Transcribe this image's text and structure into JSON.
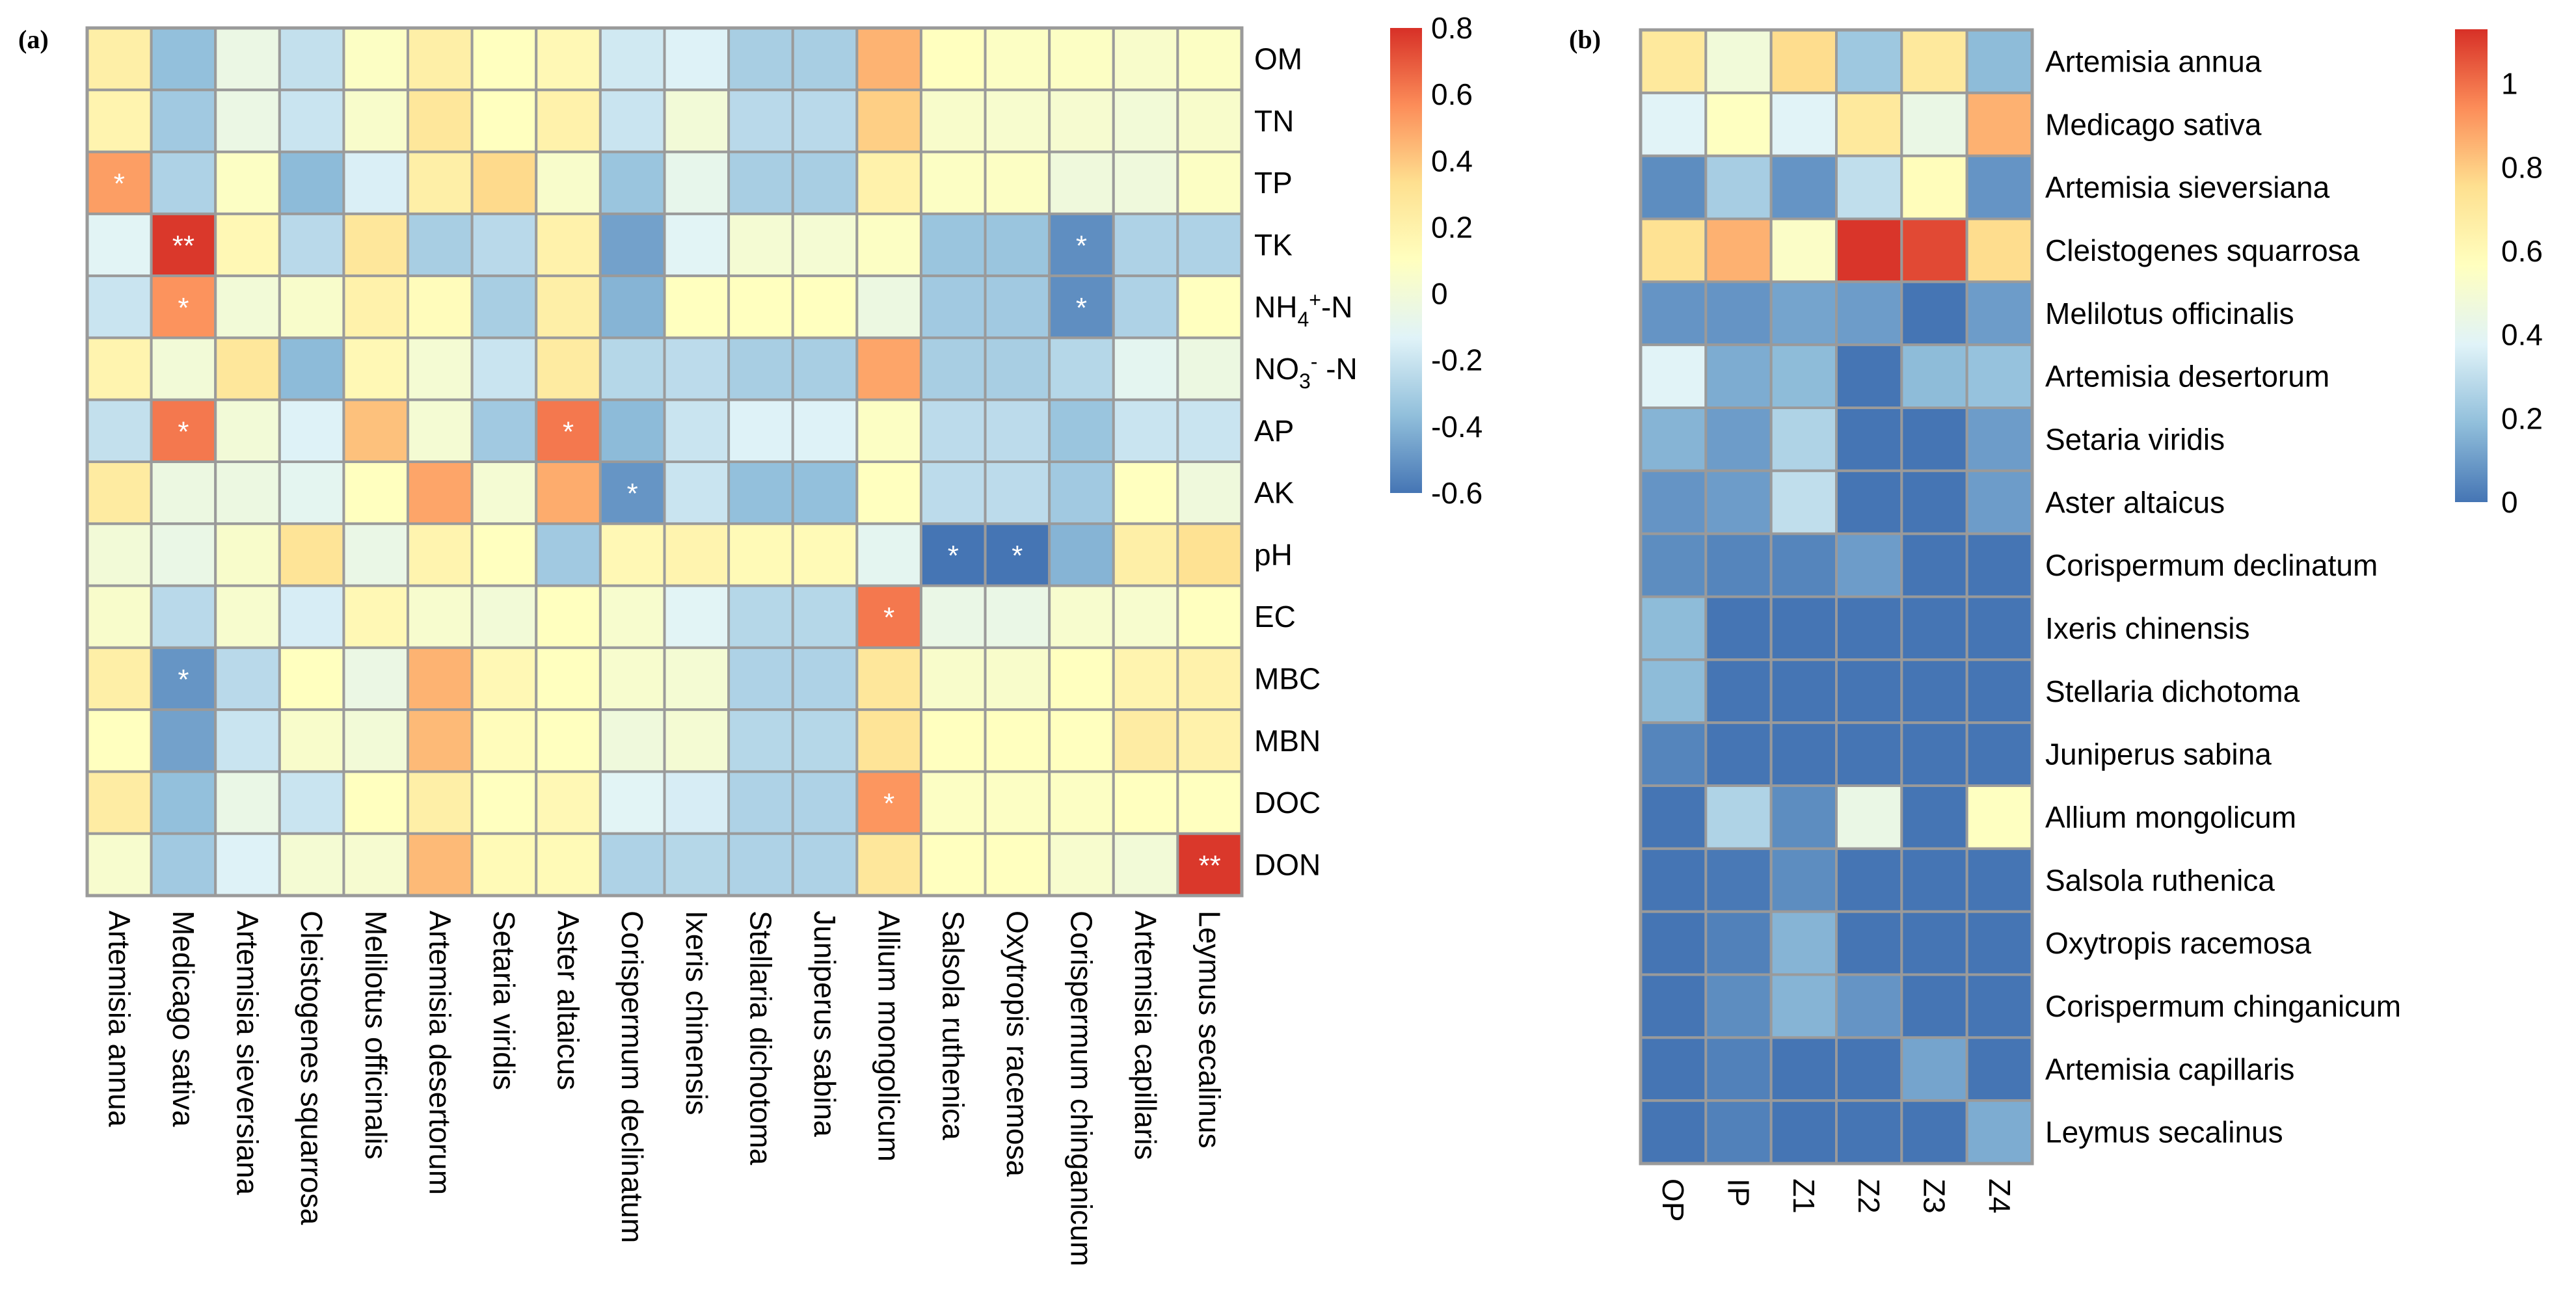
{
  "figure": {
    "panel_a_label": "(a)",
    "panel_b_label": "(b)"
  },
  "chart_data": [
    {
      "type": "heatmap",
      "panel": "(a)",
      "title": "",
      "row_labels": [
        {
          "base": "OM"
        },
        {
          "base": "TN"
        },
        {
          "base": "TP"
        },
        {
          "base": "TK"
        },
        {
          "base": "NH",
          "sub": "4",
          "sup": "+",
          "tail": "-N"
        },
        {
          "base": "NO",
          "sub": "3",
          "sup": "-",
          "tail": " -N"
        },
        {
          "base": "AP"
        },
        {
          "base": "AK"
        },
        {
          "base": "pH"
        },
        {
          "base": "EC"
        },
        {
          "base": "MBC"
        },
        {
          "base": "MBN"
        },
        {
          "base": "DOC"
        },
        {
          "base": "DON"
        }
      ],
      "col_labels": [
        "Artemisia annua",
        "Medicago sativa",
        "Artemisia sieversiana",
        "Cleistogenes squarrosa",
        "Melilotus officinalis",
        "Artemisia desertorum",
        "Setaria viridis",
        "Aster altaicus",
        "Corispermum declinatum",
        "Ixeris chinensis",
        "Stellaria dichotoma",
        "Juniperus sabina",
        "Allium mongolicum",
        "Salsola ruthenica",
        "Oxytropis racemosa",
        "Corispermum chinganicum",
        "Artemisia capillaris",
        "Leymus secalinus"
      ],
      "values": [
        [
          0.22,
          -0.36,
          -0.05,
          -0.22,
          0.08,
          0.22,
          0.1,
          0.15,
          -0.18,
          -0.14,
          -0.3,
          -0.3,
          0.46,
          0.1,
          0.08,
          0.08,
          0.05,
          0.08
        ],
        [
          0.18,
          -0.32,
          -0.05,
          -0.2,
          0.05,
          0.28,
          0.1,
          0.2,
          -0.2,
          0.0,
          -0.25,
          -0.25,
          0.38,
          0.05,
          0.04,
          0.03,
          0.0,
          0.05
        ],
        [
          0.52,
          -0.28,
          0.08,
          -0.38,
          -0.15,
          0.22,
          0.35,
          0.05,
          -0.34,
          -0.08,
          -0.3,
          -0.3,
          0.2,
          0.08,
          0.08,
          -0.02,
          -0.02,
          0.08
        ],
        [
          -0.12,
          0.78,
          0.15,
          -0.25,
          0.28,
          -0.3,
          -0.25,
          0.2,
          -0.46,
          -0.12,
          0.02,
          0.02,
          0.08,
          -0.34,
          -0.34,
          -0.52,
          -0.28,
          -0.28
        ],
        [
          -0.2,
          0.55,
          0.0,
          0.05,
          0.2,
          0.12,
          -0.3,
          0.22,
          -0.4,
          0.1,
          0.1,
          0.1,
          -0.04,
          -0.32,
          -0.32,
          -0.52,
          -0.28,
          0.1
        ],
        [
          0.18,
          0.0,
          0.28,
          -0.38,
          0.15,
          0.02,
          -0.2,
          0.25,
          -0.26,
          -0.24,
          -0.3,
          -0.3,
          0.5,
          -0.3,
          -0.3,
          -0.26,
          -0.1,
          -0.04
        ],
        [
          -0.22,
          0.62,
          0.0,
          -0.14,
          0.42,
          0.02,
          -0.32,
          0.62,
          -0.38,
          -0.2,
          -0.14,
          -0.14,
          0.08,
          -0.24,
          -0.24,
          -0.34,
          -0.2,
          -0.2
        ],
        [
          0.25,
          -0.04,
          -0.04,
          -0.1,
          0.1,
          0.5,
          0.02,
          0.48,
          -0.5,
          -0.2,
          -0.36,
          -0.36,
          0.1,
          -0.24,
          -0.24,
          -0.32,
          0.1,
          -0.02
        ],
        [
          0.0,
          -0.06,
          0.05,
          0.3,
          -0.06,
          0.18,
          0.1,
          -0.32,
          0.15,
          0.18,
          0.14,
          0.14,
          -0.1,
          -0.6,
          -0.6,
          -0.4,
          0.22,
          0.32
        ],
        [
          0.05,
          -0.25,
          0.04,
          -0.16,
          0.15,
          0.04,
          0.0,
          0.1,
          0.04,
          -0.12,
          -0.26,
          -0.26,
          0.62,
          -0.06,
          -0.06,
          0.04,
          0.04,
          0.1
        ],
        [
          0.22,
          -0.5,
          -0.25,
          0.1,
          -0.05,
          0.46,
          0.15,
          0.1,
          0.04,
          0.02,
          -0.28,
          -0.28,
          0.28,
          0.05,
          0.05,
          0.1,
          0.18,
          0.2
        ],
        [
          0.1,
          -0.46,
          -0.2,
          0.05,
          0.0,
          0.44,
          0.12,
          0.1,
          -0.02,
          0.02,
          -0.26,
          -0.26,
          0.3,
          0.1,
          0.1,
          0.1,
          0.24,
          0.2
        ],
        [
          0.24,
          -0.36,
          -0.06,
          -0.2,
          0.1,
          0.22,
          0.1,
          0.15,
          -0.12,
          -0.16,
          -0.28,
          -0.28,
          0.54,
          0.08,
          0.08,
          0.08,
          0.1,
          0.1
        ],
        [
          0.04,
          -0.32,
          -0.14,
          0.02,
          0.03,
          0.44,
          0.14,
          0.14,
          -0.28,
          -0.26,
          -0.28,
          -0.28,
          0.28,
          0.1,
          0.1,
          0.04,
          0.0,
          0.78
        ]
      ],
      "significance": [
        {
          "row": 2,
          "col": 0,
          "mark": "*"
        },
        {
          "row": 3,
          "col": 1,
          "mark": "**"
        },
        {
          "row": 3,
          "col": 15,
          "mark": "*"
        },
        {
          "row": 4,
          "col": 1,
          "mark": "*"
        },
        {
          "row": 4,
          "col": 15,
          "mark": "*"
        },
        {
          "row": 6,
          "col": 1,
          "mark": "*"
        },
        {
          "row": 6,
          "col": 7,
          "mark": "*"
        },
        {
          "row": 7,
          "col": 8,
          "mark": "*"
        },
        {
          "row": 8,
          "col": 13,
          "mark": "*"
        },
        {
          "row": 8,
          "col": 14,
          "mark": "*"
        },
        {
          "row": 9,
          "col": 12,
          "mark": "*"
        },
        {
          "row": 10,
          "col": 1,
          "mark": "*"
        },
        {
          "row": 12,
          "col": 12,
          "mark": "*"
        },
        {
          "row": 13,
          "col": 17,
          "mark": "**"
        }
      ],
      "colorbar": {
        "range": [
          -0.6,
          0.8
        ],
        "ticks": [
          0.8,
          0.6,
          0.4,
          0.2,
          0,
          -0.2,
          -0.4,
          -0.6
        ],
        "tick_labels": [
          "0.8",
          "0.6",
          "0.4",
          "0.2",
          "0",
          "-0.2",
          "-0.4",
          "-0.6"
        ],
        "colormap": [
          "#4575b4",
          "#91bfdb",
          "#e0f3f8",
          "#ffffbf",
          "#fee090",
          "#fc8d59",
          "#d73027"
        ]
      },
      "row_label_position": "right",
      "col_label_position": "bottom",
      "legend": "right"
    },
    {
      "type": "heatmap",
      "panel": "(b)",
      "title": "",
      "row_labels": [
        "Artemisia annua",
        "Medicago sativa",
        "Artemisia sieversiana",
        "Cleistogenes squarrosa",
        "Melilotus officinalis",
        "Artemisia desertorum",
        "Setaria viridis",
        "Aster altaicus",
        "Corispermum declinatum",
        "Ixeris chinensis",
        "Stellaria dichotoma",
        "Juniperus sabina",
        "Allium mongolicum",
        "Salsola ruthenica",
        "Oxytropis racemosa",
        "Corispermum chinganicum",
        "Artemisia capillaris",
        "Leymus secalinus"
      ],
      "col_labels": [
        "OP",
        "IP",
        "Z1",
        "Z2",
        "Z3",
        "Z4"
      ],
      "values": [
        [
          0.7,
          0.48,
          0.76,
          0.22,
          0.7,
          0.18
        ],
        [
          0.38,
          0.56,
          0.38,
          0.7,
          0.44,
          0.86
        ],
        [
          0.06,
          0.24,
          0.08,
          0.3,
          0.58,
          0.08
        ],
        [
          0.74,
          0.86,
          0.54,
          1.12,
          1.08,
          0.76
        ],
        [
          0.08,
          0.08,
          0.12,
          0.1,
          0.0,
          0.1
        ],
        [
          0.38,
          0.14,
          0.18,
          0.0,
          0.18,
          0.2
        ],
        [
          0.16,
          0.1,
          0.26,
          0.0,
          0.0,
          0.1
        ],
        [
          0.08,
          0.1,
          0.3,
          0.0,
          0.0,
          0.1
        ],
        [
          0.06,
          0.04,
          0.04,
          0.1,
          0.0,
          0.0
        ],
        [
          0.18,
          0.0,
          0.0,
          0.0,
          0.0,
          0.0
        ],
        [
          0.18,
          0.0,
          0.0,
          0.0,
          0.0,
          0.0
        ],
        [
          0.04,
          0.0,
          0.0,
          0.0,
          0.0,
          0.0
        ],
        [
          0.0,
          0.26,
          0.06,
          0.44,
          0.0,
          0.56
        ],
        [
          0.0,
          0.01,
          0.06,
          0.0,
          0.0,
          0.0
        ],
        [
          0.0,
          0.03,
          0.16,
          0.0,
          0.0,
          0.0
        ],
        [
          0.0,
          0.06,
          0.16,
          0.08,
          0.0,
          0.0
        ],
        [
          0.0,
          0.03,
          0.0,
          0.0,
          0.12,
          0.0
        ],
        [
          0.0,
          0.03,
          0.0,
          0.0,
          0.0,
          0.14
        ]
      ],
      "colorbar": {
        "range": [
          0,
          1.13
        ],
        "ticks": [
          1,
          0.8,
          0.6,
          0.4,
          0.2,
          0
        ],
        "tick_labels": [
          "1",
          "0.8",
          "0.6",
          "0.4",
          "0.2",
          "0"
        ],
        "colormap": [
          "#4575b4",
          "#91bfdb",
          "#e0f3f8",
          "#ffffbf",
          "#fee090",
          "#fc8d59",
          "#d73027"
        ]
      },
      "row_label_position": "right",
      "col_label_position": "bottom",
      "legend": "right"
    }
  ]
}
